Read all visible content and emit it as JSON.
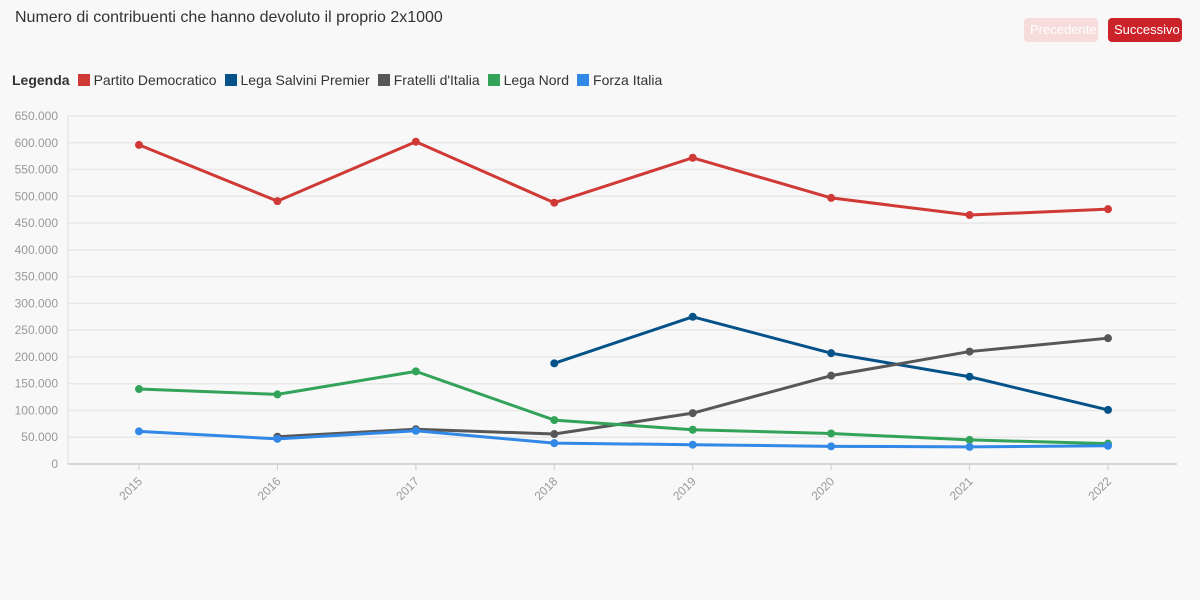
{
  "header": {
    "title": "Numero di contribuenti che hanno devoluto il proprio 2x1000",
    "prev_label": "Precedente",
    "next_label": "Successivo"
  },
  "legend": {
    "title": "Legenda"
  },
  "chart_data": {
    "type": "line",
    "title": "Numero di contribuenti che hanno devoluto il proprio 2x1000",
    "xlabel": "",
    "ylabel": "",
    "categories": [
      "2015",
      "2016",
      "2017",
      "2018",
      "2019",
      "2020",
      "2021",
      "2022"
    ],
    "ylim": [
      0,
      650000
    ],
    "yticks": [
      {
        "value": 0,
        "label": "0"
      },
      {
        "value": 50000,
        "label": "50.000"
      },
      {
        "value": 100000,
        "label": "100.000"
      },
      {
        "value": 150000,
        "label": "150.000"
      },
      {
        "value": 200000,
        "label": "200.000"
      },
      {
        "value": 250000,
        "label": "250.000"
      },
      {
        "value": 300000,
        "label": "300.000"
      },
      {
        "value": 350000,
        "label": "350.000"
      },
      {
        "value": 400000,
        "label": "400.000"
      },
      {
        "value": 450000,
        "label": "450.000"
      },
      {
        "value": 500000,
        "label": "500.000"
      },
      {
        "value": 550000,
        "label": "550.000"
      },
      {
        "value": 600000,
        "label": "600.000"
      },
      {
        "value": 650000,
        "label": "650.000"
      }
    ],
    "grid": true,
    "legend_position": "top-left",
    "series": [
      {
        "name": "Partito Democratico",
        "color": "#d03a36",
        "values": [
          596000,
          491000,
          602000,
          488000,
          572000,
          497000,
          465000,
          476000
        ]
      },
      {
        "name": "Lega Salvini Premier",
        "color": "#055289",
        "values": [
          null,
          null,
          null,
          188000,
          275000,
          207000,
          163000,
          101000
        ]
      },
      {
        "name": "Fratelli d'Italia",
        "color": "#575757",
        "values": [
          null,
          51000,
          65000,
          56000,
          95000,
          165000,
          210000,
          235000
        ]
      },
      {
        "name": "Lega Nord",
        "color": "#33a35a",
        "values": [
          140000,
          130000,
          173000,
          82000,
          64000,
          57000,
          45000,
          38000
        ]
      },
      {
        "name": "Forza Italia",
        "color": "#3288e6",
        "values": [
          61000,
          47000,
          62000,
          39000,
          36000,
          33000,
          32000,
          34000
        ]
      }
    ]
  }
}
